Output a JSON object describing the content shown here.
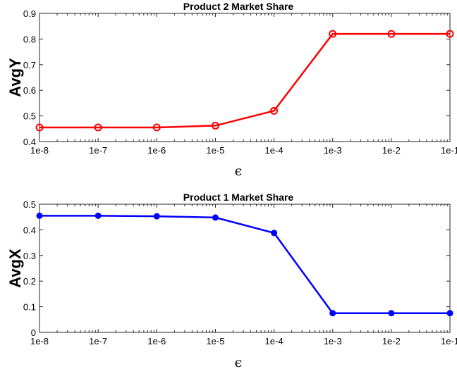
{
  "chart_data": [
    {
      "type": "line",
      "title": "Product 2 Market Share",
      "xlabel": "ϵ",
      "ylabel": "AvgY",
      "categories": [
        "1e-8",
        "1e-7",
        "1e-6",
        "1e-5",
        "1e-4",
        "1e-3",
        "1e-2",
        "1e-1"
      ],
      "xscale": "log",
      "ylim": [
        0.4,
        0.9
      ],
      "yticks": [
        "0.4",
        "0.5",
        "0.6",
        "0.7",
        "0.8",
        "0.9"
      ],
      "grid": false,
      "marker": "open-circle",
      "color": "#ff0000",
      "series": [
        {
          "values": [
            0.455,
            0.455,
            0.455,
            0.462,
            0.52,
            0.82,
            0.82,
            0.82
          ]
        }
      ]
    },
    {
      "type": "line",
      "title": "Product 1 Market Share",
      "xlabel": "ϵ",
      "ylabel": "AvgX",
      "categories": [
        "1e-8",
        "1e-7",
        "1e-6",
        "1e-5",
        "1e-4",
        "1e-3",
        "1e-2",
        "1e-1"
      ],
      "xscale": "log",
      "ylim": [
        0,
        0.5
      ],
      "yticks": [
        "0",
        "0.1",
        "0.2",
        "0.3",
        "0.4",
        "0.5"
      ],
      "grid": false,
      "marker": "filled-circle",
      "color": "#0000ff",
      "series": [
        {
          "values": [
            0.455,
            0.455,
            0.453,
            0.448,
            0.388,
            0.075,
            0.075,
            0.075
          ]
        }
      ]
    }
  ]
}
